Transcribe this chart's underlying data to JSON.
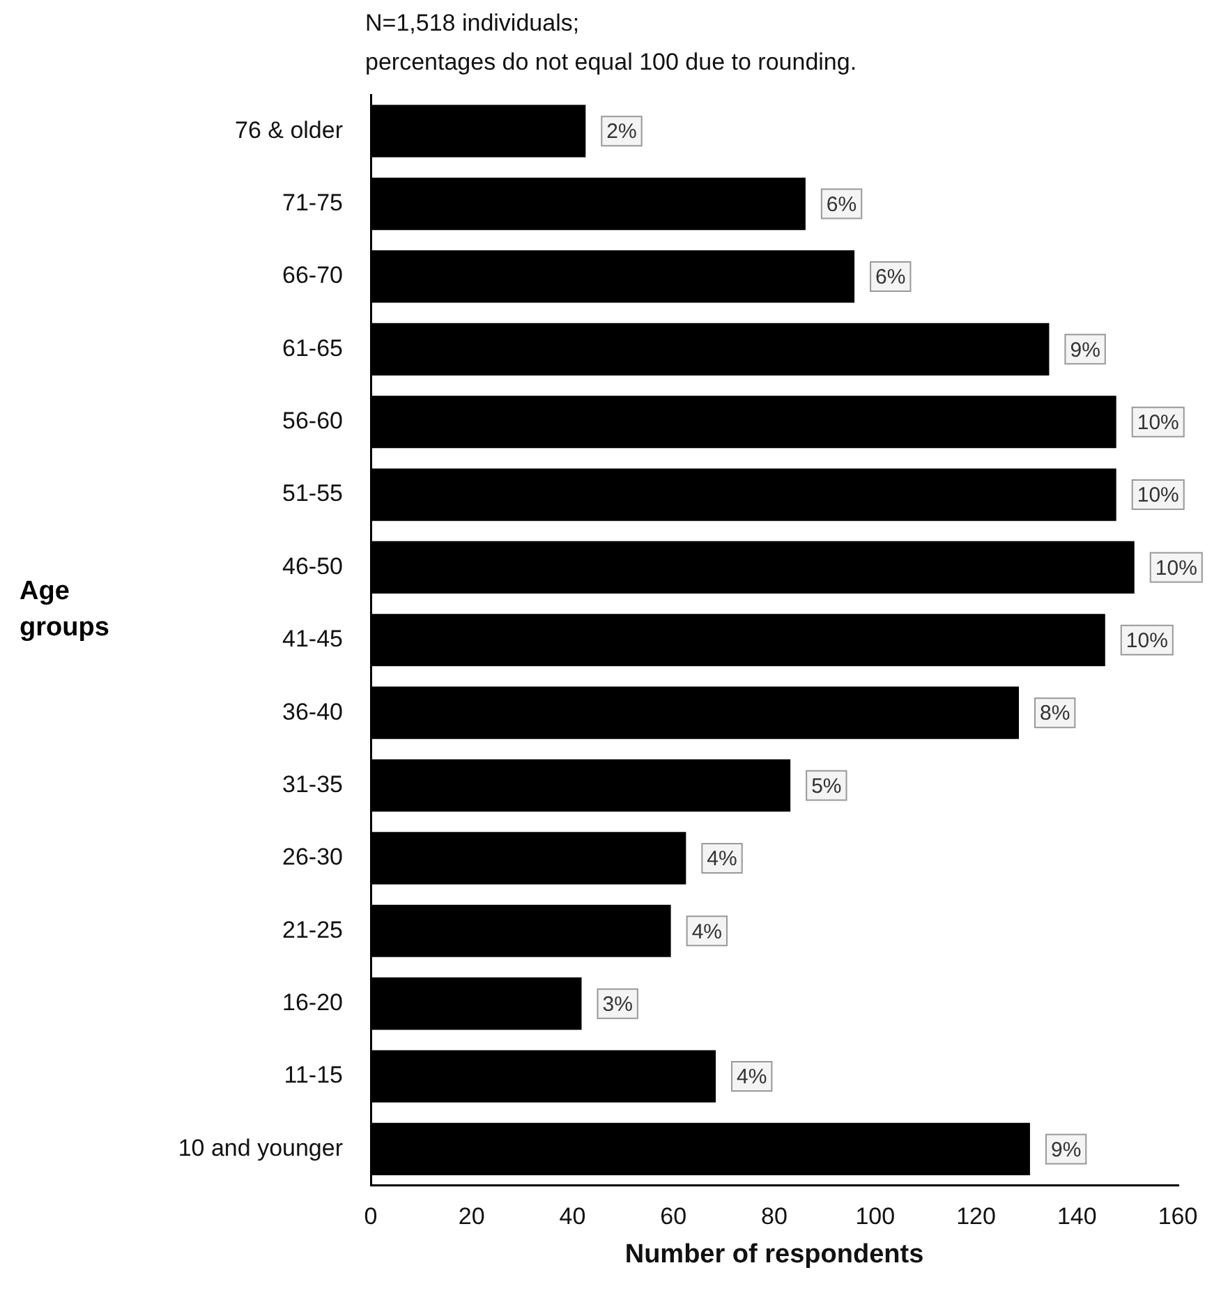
{
  "chart_data": {
    "type": "bar",
    "orientation": "horizontal",
    "title": "N=1,518 individuals;",
    "subtitle": "percentages do not equal 100 due to rounding.",
    "xlabel": "Number of respondents",
    "ylabel": "Age groups",
    "categories": [
      "76 & older",
      "71-75",
      "66-70",
      "61-65",
      "56-60",
      "51-55",
      "46-50",
      "41-45",
      "36-40",
      "31-35",
      "26-30",
      "21-25",
      "16-20",
      "11-15",
      "10 and younger"
    ],
    "values": [
      42.6,
      86.2,
      95.9,
      134.5,
      147.8,
      147.8,
      151.4,
      145.6,
      128.5,
      83.2,
      62.5,
      59.5,
      41.8,
      68.4,
      130.7
    ],
    "annotations": [
      {
        "text": "2%",
        "x": 42.6,
        "y": "76 & older"
      },
      {
        "text": "6%",
        "x": 86.2,
        "y": "71-75"
      },
      {
        "text": "6%",
        "x": 95.9,
        "y": "66-70"
      },
      {
        "text": "9%",
        "x": 134.5,
        "y": "61-65"
      },
      {
        "text": "10%",
        "x": 147.8,
        "y": "56-60"
      },
      {
        "text": "10%",
        "x": 147.8,
        "y": "51-55"
      },
      {
        "text": "10%",
        "x": 151.4,
        "y": "46-50"
      },
      {
        "text": "10%",
        "x": 145.6,
        "y": "41-45"
      },
      {
        "text": "8%",
        "x": 128.5,
        "y": "36-40"
      },
      {
        "text": "5%",
        "x": 83.2,
        "y": "31-35"
      },
      {
        "text": "4%",
        "x": 62.5,
        "y": "26-30"
      },
      {
        "text": "4%",
        "x": 59.5,
        "y": "21-25"
      },
      {
        "text": "3%",
        "x": 41.8,
        "y": "16-20"
      },
      {
        "text": "4%",
        "x": 68.4,
        "y": "11-15"
      },
      {
        "text": "9%",
        "x": 130.7,
        "y": "10 and younger"
      }
    ],
    "color": "#000000",
    "xlim": [
      0,
      160
    ],
    "xticks": [
      0,
      20,
      40,
      60,
      80,
      100,
      120,
      140,
      160
    ],
    "grid": false,
    "legend": false
  }
}
